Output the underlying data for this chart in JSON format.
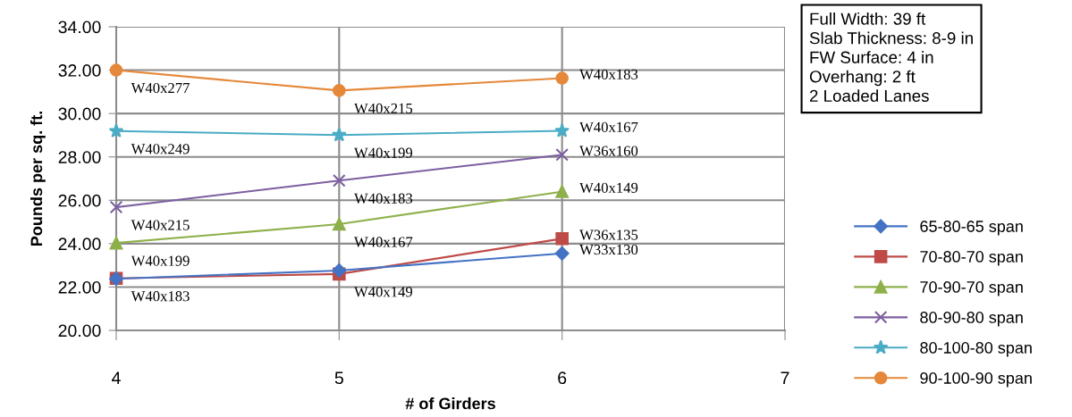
{
  "chart_data": {
    "type": "line",
    "xlabel": "# of Girders",
    "ylabel": "Pounds per sq. ft.",
    "x": [
      4,
      5,
      6
    ],
    "xlim": [
      4,
      7
    ],
    "xticks": [
      4,
      5,
      6,
      7
    ],
    "ylim": [
      20,
      34
    ],
    "yticks": [
      {
        "value": 20,
        "label": "20.00"
      },
      {
        "value": 22,
        "label": "22.00"
      },
      {
        "value": 24,
        "label": "24.00"
      },
      {
        "value": 26,
        "label": "26.00"
      },
      {
        "value": 28,
        "label": "28.00"
      },
      {
        "value": 30,
        "label": "30.00"
      },
      {
        "value": 32,
        "label": "32.00"
      },
      {
        "value": 34,
        "label": "34.00"
      }
    ],
    "grid": true,
    "legend": "right",
    "series": [
      {
        "name": "65-80-65 span",
        "color": "#4472c4",
        "marker": "diamond",
        "values": [
          22.38,
          22.76,
          23.55
        ]
      },
      {
        "name": "70-80-70 span",
        "color": "#be4b48",
        "marker": "square",
        "values": [
          22.4,
          22.6,
          24.23
        ]
      },
      {
        "name": "70-90-70 span",
        "color": "#8eb04a",
        "marker": "triangle",
        "values": [
          24.03,
          24.9,
          26.4
        ]
      },
      {
        "name": "80-90-80 span",
        "color": "#7d5fa0",
        "marker": "cross",
        "values": [
          25.68,
          26.91,
          28.1
        ]
      },
      {
        "name": "80-100-80 span",
        "color": "#4aacc5",
        "marker": "star",
        "values": [
          29.19,
          29.01,
          29.2
        ]
      },
      {
        "name": "90-100-90 span",
        "color": "#e5883a",
        "marker": "circle",
        "values": [
          32.0,
          31.06,
          31.63
        ]
      }
    ],
    "annotations": [
      "Full Width: 39 ft",
      "Slab Thickness: 8-9 in",
      "FW Surface: 4 in",
      "Overhang: 2 ft",
      "2 Loaded Lanes",
      {
        "text": "W40x277",
        "x": 4,
        "y": 32.0
      },
      {
        "text": "W40x215",
        "x": 5,
        "y": 31.06
      },
      {
        "text": "W40x183",
        "x": 6,
        "y": 31.63
      },
      {
        "text": "W40x249",
        "x": 4,
        "y": 29.19
      },
      {
        "text": "W40x199",
        "x": 5,
        "y": 29.01
      },
      {
        "text": "W40x167",
        "x": 6,
        "y": 29.2
      },
      {
        "text": "W40x215",
        "x": 4,
        "y": 25.68
      },
      {
        "text": "W40x183",
        "x": 5,
        "y": 26.91
      },
      {
        "text": "W36x160",
        "x": 6,
        "y": 28.1
      },
      {
        "text": "W40x199",
        "x": 4,
        "y": 24.03
      },
      {
        "text": "W40x167",
        "x": 5,
        "y": 24.9
      },
      {
        "text": "W40x149",
        "x": 6,
        "y": 26.4
      },
      {
        "text": "W40x183",
        "x": 4,
        "y": 22.4
      },
      {
        "text": "W40x149",
        "x": 5,
        "y": 22.6
      },
      {
        "text": "W36x135",
        "x": 6,
        "y": 24.23
      },
      {
        "text": "W33x130",
        "x": 6,
        "y": 23.55
      }
    ]
  }
}
